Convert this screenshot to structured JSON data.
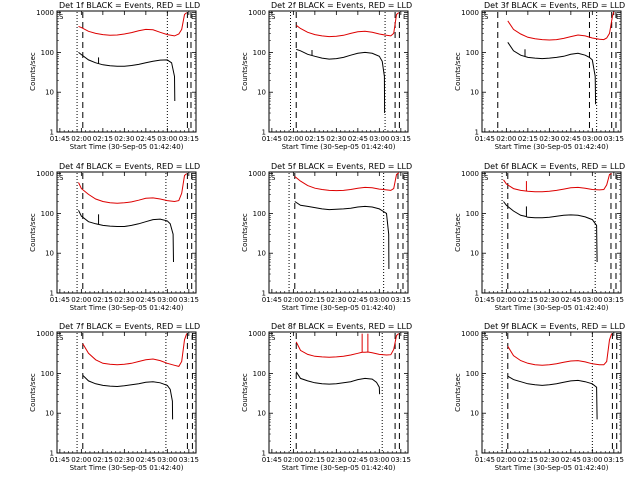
{
  "figure": {
    "common": {
      "xlabel": "Start Time (30-Sep-05 01:42:40)",
      "ylabel": "Counts/sec",
      "x_ticks": [
        "01:45",
        "02:00",
        "02:15",
        "02:30",
        "02:45",
        "03:00",
        "03:15"
      ],
      "y_ticks": [
        "1",
        "10",
        "100",
        "1000"
      ],
      "yscale": "log",
      "xlim_minutes": [
        103,
        200
      ],
      "ylim": [
        1,
        1100
      ],
      "series_colors": {
        "events": "#000000",
        "lld": "#dd0000"
      },
      "corner_labels": {
        "start": "S",
        "end": "E"
      }
    }
  },
  "chart_data": [
    {
      "type": "line",
      "title": "Det 1f BLACK = Events, RED = LLD",
      "series": [
        {
          "key": "events",
          "x": [
            118,
            120,
            125,
            130,
            135,
            140,
            145,
            150,
            155,
            160,
            165,
            170,
            175,
            180,
            183,
            185,
            185.2
          ],
          "y": [
            100,
            88,
            65,
            55,
            49,
            46,
            45,
            45,
            47,
            50,
            55,
            60,
            64,
            65,
            55,
            25,
            6
          ]
        },
        {
          "key": "lld",
          "x": [
            118,
            120,
            125,
            130,
            135,
            140,
            145,
            150,
            155,
            160,
            165,
            170,
            175,
            180,
            185,
            188,
            190,
            192,
            193.5
          ],
          "y": [
            450,
            420,
            340,
            300,
            280,
            270,
            275,
            290,
            315,
            350,
            380,
            370,
            320,
            280,
            260,
            290,
            380,
            900,
            1000
          ]
        }
      ],
      "spikes": [
        {
          "key": "events",
          "x": 132,
          "y": 75
        }
      ],
      "vlines": [
        {
          "x": 117,
          "style": "dotted"
        },
        {
          "x": 121,
          "style": "dashed"
        },
        {
          "x": 180,
          "style": "dotted"
        },
        {
          "x": 194,
          "style": "dashed"
        },
        {
          "x": 196.5,
          "style": "dashed"
        }
      ]
    },
    {
      "type": "line",
      "title": "Det 2f BLACK = Events, RED = LLD",
      "series": [
        {
          "key": "events",
          "x": [
            122,
            125,
            130,
            135,
            140,
            145,
            150,
            155,
            160,
            165,
            170,
            175,
            180,
            182,
            183.5,
            183.7
          ],
          "y": [
            120,
            110,
            90,
            80,
            72,
            68,
            70,
            75,
            85,
            95,
            100,
            95,
            80,
            60,
            25,
            3
          ]
        },
        {
          "key": "lld",
          "x": [
            122,
            125,
            130,
            135,
            140,
            145,
            150,
            155,
            160,
            165,
            170,
            175,
            180,
            185,
            188,
            190,
            192,
            193.5
          ],
          "y": [
            480,
            400,
            320,
            280,
            260,
            250,
            255,
            270,
            300,
            330,
            340,
            320,
            290,
            270,
            260,
            300,
            900,
            1000
          ]
        }
      ],
      "spikes": [
        {
          "key": "events",
          "x": 133,
          "y": 115
        }
      ],
      "vlines": [
        {
          "x": 118,
          "style": "dotted"
        },
        {
          "x": 122,
          "style": "dashed"
        },
        {
          "x": 184,
          "style": "dotted"
        },
        {
          "x": 191,
          "style": "dashed"
        },
        {
          "x": 194,
          "style": "dashed"
        }
      ]
    },
    {
      "type": "line",
      "title": "Det 3f BLACK = Events, RED = LLD",
      "series": [
        {
          "key": "events",
          "x": [
            121,
            125,
            130,
            135,
            140,
            145,
            150,
            155,
            160,
            165,
            170,
            175,
            178,
            180,
            182,
            182.3
          ],
          "y": [
            180,
            110,
            85,
            75,
            72,
            70,
            72,
            75,
            80,
            90,
            95,
            85,
            75,
            65,
            25,
            5
          ]
        },
        {
          "key": "lld",
          "x": [
            121,
            125,
            130,
            135,
            140,
            145,
            150,
            155,
            160,
            165,
            170,
            175,
            180,
            185,
            188,
            190,
            192,
            194,
            195
          ],
          "y": [
            620,
            380,
            290,
            240,
            220,
            210,
            205,
            210,
            225,
            250,
            275,
            260,
            230,
            215,
            210,
            230,
            300,
            800,
            1050
          ]
        }
      ],
      "spikes": [
        {
          "key": "events",
          "x": 133,
          "y": 120
        }
      ],
      "vlines": [
        {
          "x": 114,
          "style": "dashed"
        },
        {
          "x": 178,
          "style": "dashed"
        },
        {
          "x": 183,
          "style": "dotted"
        },
        {
          "x": 193.5,
          "style": "dashed"
        },
        {
          "x": 196.5,
          "style": "dashed"
        }
      ]
    },
    {
      "type": "line",
      "title": "Det 4f BLACK = Events, RED = LLD",
      "series": [
        {
          "key": "events",
          "x": [
            118,
            120,
            125,
            130,
            135,
            140,
            145,
            150,
            155,
            160,
            165,
            170,
            175,
            180,
            182,
            184,
            184.3
          ],
          "y": [
            120,
            85,
            62,
            55,
            50,
            48,
            47,
            47,
            50,
            55,
            62,
            70,
            72,
            65,
            55,
            30,
            6
          ]
        },
        {
          "key": "lld",
          "x": [
            118,
            120,
            125,
            130,
            135,
            140,
            145,
            150,
            155,
            160,
            165,
            170,
            175,
            180,
            185,
            188,
            190,
            192,
            193.5
          ],
          "y": [
            600,
            420,
            300,
            230,
            200,
            185,
            180,
            185,
            195,
            215,
            240,
            245,
            230,
            210,
            200,
            210,
            320,
            900,
            1000
          ]
        }
      ],
      "spikes": [
        {
          "key": "events",
          "x": 132,
          "y": 95
        }
      ],
      "vlines": [
        {
          "x": 117,
          "style": "dotted"
        },
        {
          "x": 121,
          "style": "dashed"
        },
        {
          "x": 179,
          "style": "dotted"
        },
        {
          "x": 194,
          "style": "dashed"
        },
        {
          "x": 197,
          "style": "dashed"
        }
      ]
    },
    {
      "type": "line",
      "title": "Det 5f BLACK = Events, RED = LLD",
      "series": [
        {
          "key": "events",
          "x": [
            121,
            125,
            130,
            135,
            140,
            145,
            150,
            155,
            160,
            165,
            170,
            175,
            180,
            185,
            186.5,
            186.7
          ],
          "y": [
            200,
            160,
            150,
            140,
            130,
            125,
            128,
            130,
            135,
            145,
            150,
            145,
            130,
            100,
            30,
            4
          ]
        },
        {
          "key": "lld",
          "x": [
            121,
            125,
            130,
            135,
            140,
            145,
            150,
            155,
            160,
            165,
            170,
            175,
            180,
            185,
            188,
            190,
            192,
            193.5
          ],
          "y": [
            850,
            650,
            500,
            430,
            400,
            380,
            375,
            380,
            400,
            430,
            450,
            440,
            410,
            390,
            380,
            420,
            950,
            1050
          ]
        }
      ],
      "spikes": [],
      "vlines": [
        {
          "x": 117,
          "style": "dotted"
        },
        {
          "x": 121,
          "style": "dashed"
        },
        {
          "x": 183,
          "style": "dotted"
        },
        {
          "x": 193,
          "style": "dashed"
        },
        {
          "x": 196.5,
          "style": "dashed"
        }
      ]
    },
    {
      "type": "line",
      "title": "Det 6f BLACK = Events, RED = LLD",
      "series": [
        {
          "key": "events",
          "x": [
            118,
            120,
            125,
            130,
            133,
            135,
            140,
            145,
            150,
            155,
            160,
            165,
            170,
            175,
            180,
            183,
            183.3
          ],
          "y": [
            200,
            160,
            115,
            90,
            85,
            80,
            78,
            78,
            80,
            85,
            90,
            92,
            90,
            82,
            70,
            50,
            6
          ]
        },
        {
          "key": "lld",
          "x": [
            118,
            120,
            125,
            130,
            135,
            140,
            145,
            150,
            155,
            160,
            165,
            170,
            175,
            180,
            185,
            188,
            190,
            192,
            193.5
          ],
          "y": [
            700,
            550,
            420,
            380,
            360,
            350,
            350,
            360,
            380,
            410,
            440,
            450,
            430,
            400,
            390,
            400,
            520,
            950,
            1000
          ]
        }
      ],
      "spikes": [
        {
          "key": "events",
          "x": 134,
          "y": 150
        },
        {
          "key": "lld",
          "x": 134,
          "y": 650
        }
      ],
      "vlines": [
        {
          "x": 117,
          "style": "dotted"
        },
        {
          "x": 121,
          "style": "dashed"
        },
        {
          "x": 182,
          "style": "dotted"
        },
        {
          "x": 193,
          "style": "dashed"
        },
        {
          "x": 196.5,
          "style": "dashed"
        }
      ]
    },
    {
      "type": "line",
      "title": "Det 7f BLACK = Events, RED = LLD",
      "series": [
        {
          "key": "events",
          "x": [
            121,
            125,
            130,
            135,
            140,
            145,
            150,
            155,
            160,
            165,
            170,
            175,
            180,
            182,
            183.5,
            183.7
          ],
          "y": [
            90,
            65,
            55,
            50,
            48,
            47,
            49,
            52,
            55,
            60,
            62,
            58,
            50,
            40,
            20,
            7
          ]
        },
        {
          "key": "lld",
          "x": [
            121,
            125,
            130,
            135,
            140,
            145,
            150,
            155,
            160,
            165,
            170,
            175,
            180,
            185,
            188,
            190,
            192,
            193.5
          ],
          "y": [
            560,
            320,
            220,
            180,
            170,
            165,
            170,
            180,
            200,
            220,
            230,
            210,
            180,
            160,
            150,
            200,
            700,
            1000
          ]
        }
      ],
      "spikes": [],
      "vlines": [
        {
          "x": 117,
          "style": "dotted"
        },
        {
          "x": 121,
          "style": "dashed"
        },
        {
          "x": 179,
          "style": "dotted"
        },
        {
          "x": 194,
          "style": "dashed"
        },
        {
          "x": 197.5,
          "style": "dashed"
        }
      ]
    },
    {
      "type": "line",
      "title": "Det 8f BLACK = Events, RED = LLD",
      "series": [
        {
          "key": "events",
          "x": [
            122,
            125,
            130,
            135,
            140,
            145,
            150,
            155,
            160,
            165,
            170,
            175,
            178,
            180,
            180.2
          ],
          "y": [
            110,
            75,
            65,
            58,
            55,
            54,
            55,
            58,
            62,
            70,
            75,
            72,
            60,
            45,
            30
          ]
        },
        {
          "key": "lld",
          "x": [
            122,
            125,
            130,
            135,
            140,
            145,
            150,
            155,
            160,
            165,
            168,
            170,
            172,
            175,
            180,
            185,
            188,
            190,
            192,
            193.5
          ],
          "y": [
            620,
            380,
            300,
            270,
            260,
            255,
            260,
            270,
            290,
            320,
            340,
            340,
            345,
            330,
            300,
            290,
            295,
            400,
            900,
            1000
          ]
        }
      ],
      "spikes": [
        {
          "key": "lld",
          "x": 168,
          "y": 1000
        },
        {
          "key": "lld",
          "x": 172,
          "y": 1000
        }
      ],
      "vlines": [
        {
          "x": 118,
          "style": "dotted"
        },
        {
          "x": 122,
          "style": "dashed"
        },
        {
          "x": 182,
          "style": "dotted"
        },
        {
          "x": 191,
          "style": "dashed"
        },
        {
          "x": 194,
          "style": "dashed"
        }
      ]
    },
    {
      "type": "line",
      "title": "Det 9f BLACK = Events, RED = LLD",
      "series": [
        {
          "key": "events",
          "x": [
            121,
            125,
            130,
            135,
            140,
            145,
            150,
            155,
            160,
            165,
            170,
            175,
            180,
            183,
            183.3
          ],
          "y": [
            85,
            70,
            62,
            55,
            52,
            50,
            52,
            55,
            60,
            65,
            67,
            62,
            55,
            45,
            7
          ]
        },
        {
          "key": "lld",
          "x": [
            121,
            125,
            130,
            135,
            140,
            145,
            150,
            155,
            160,
            165,
            170,
            175,
            180,
            185,
            188,
            190,
            192,
            193.5
          ],
          "y": [
            480,
            280,
            210,
            180,
            165,
            160,
            165,
            175,
            190,
            205,
            210,
            195,
            175,
            165,
            165,
            200,
            700,
            1000
          ]
        }
      ],
      "spikes": [],
      "vlines": [
        {
          "x": 117,
          "style": "dotted"
        },
        {
          "x": 121,
          "style": "dashed"
        },
        {
          "x": 180,
          "style": "dotted"
        },
        {
          "x": 194,
          "style": "dashed"
        },
        {
          "x": 197,
          "style": "dashed"
        }
      ]
    }
  ]
}
